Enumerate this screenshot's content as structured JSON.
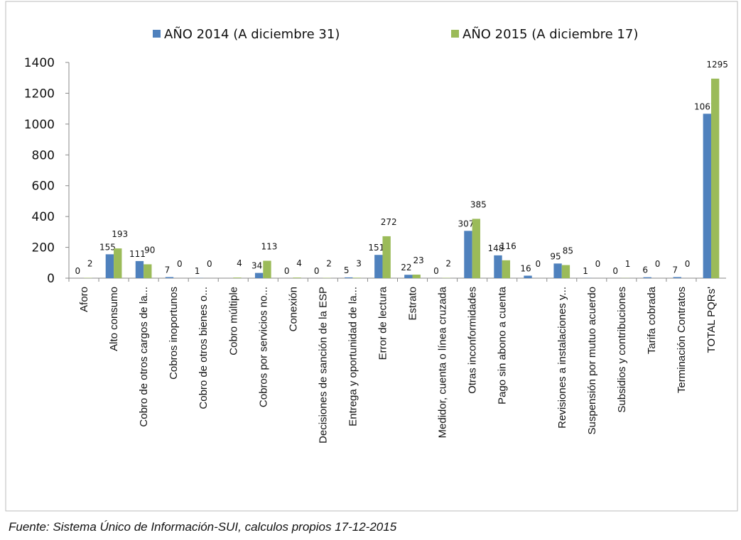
{
  "chart_data": {
    "type": "bar",
    "categories": [
      "Aforo",
      "Alto consumo",
      "Cobro de  otros cargos de la...",
      "Cobros inoportunos",
      "Cobro de otros bienes o...",
      "Cobro múltiple",
      "Cobros por servicios no...",
      "Conexión",
      "Decisiones de sanción de la ESP",
      "Entrega y oportunidad de la...",
      "Error de lectura",
      "Estrato",
      "Medidor, cuenta o línea cruzada",
      "Otras inconformidades",
      "Pago sin abono a cuenta",
      null,
      "Revisiones a instalaciones y...",
      "Suspensión por mutuo acuerdo",
      "Subsidios y contribuciones",
      "Tarifa cobrada",
      "Terminación Contratos",
      "TOTAL PQRs'"
    ],
    "series": [
      {
        "name": "AÑO 2014 (A diciembre 31)",
        "color": "#4f81bd",
        "values": [
          0,
          155,
          111,
          7,
          1,
          null,
          34,
          0,
          0,
          5,
          151,
          22,
          0,
          307,
          148,
          16,
          95,
          1,
          0,
          6,
          7,
          1067
        ]
      },
      {
        "name": "AÑO 2015 (A diciembre 17)",
        "color": "#9bbb59",
        "values": [
          2,
          193,
          90,
          0,
          0,
          4,
          113,
          4,
          2,
          3,
          272,
          23,
          2,
          385,
          116,
          0,
          85,
          0,
          1,
          0,
          0,
          1295
        ]
      }
    ],
    "ylim": [
      0,
      1400
    ],
    "yticks": [
      0,
      200,
      400,
      600,
      800,
      1000,
      1200,
      1400
    ],
    "legend": "top",
    "source": "Fuente: Sistema Único de Información-SUI, calculos propios 17-12-2015"
  }
}
